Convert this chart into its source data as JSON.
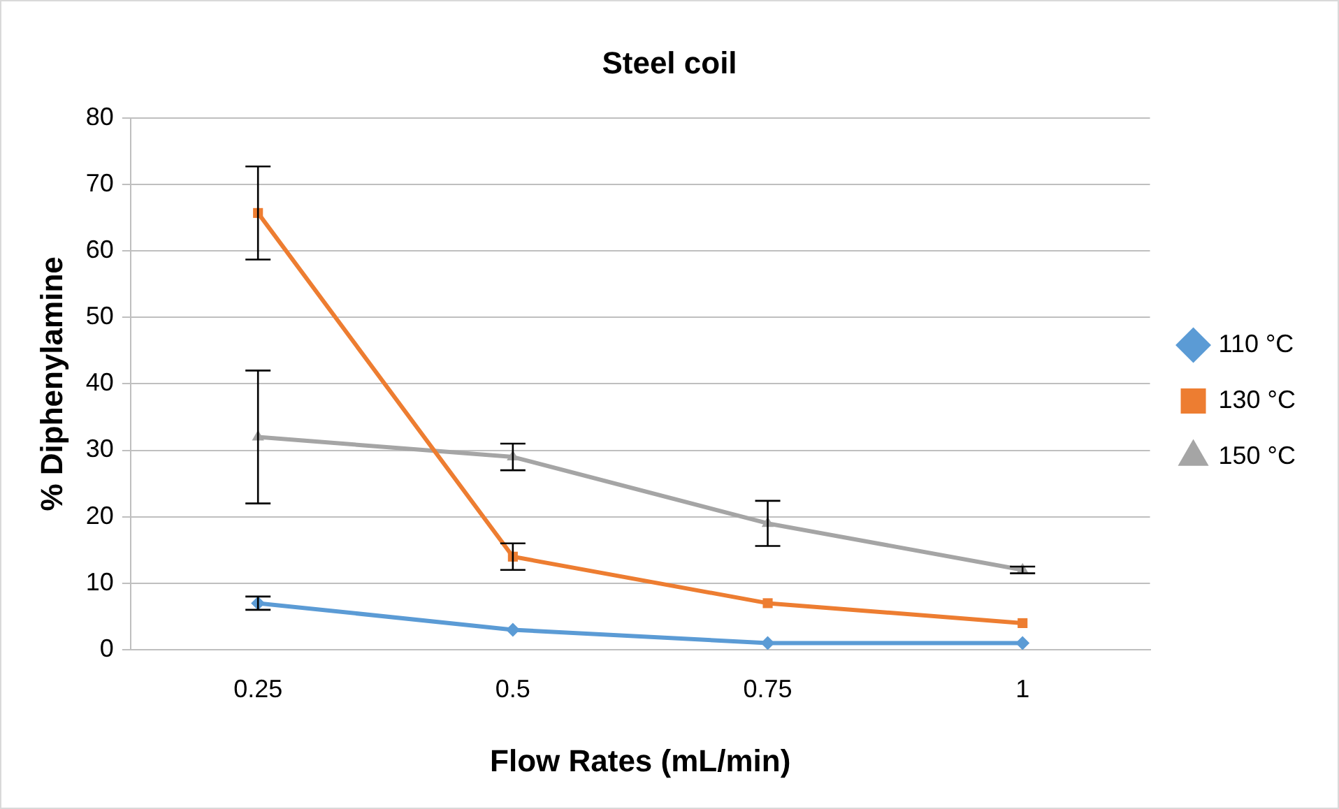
{
  "chart_data": {
    "type": "line",
    "title": "Steel coil",
    "xlabel": "Flow Rates (mL/min)",
    "ylabel": "% Diphenylamine",
    "categories": [
      "0.25",
      "0.5",
      "0.75",
      "1"
    ],
    "series": [
      {
        "name": "110 °C",
        "color": "#5b9bd5",
        "marker": "diamond",
        "values": [
          7,
          3,
          1,
          1
        ],
        "errors": [
          1,
          null,
          null,
          null
        ]
      },
      {
        "name": "130 °C",
        "color": "#ed7d31",
        "marker": "square",
        "values": [
          65.7,
          14,
          7,
          4
        ],
        "errors": [
          7,
          2,
          null,
          null
        ]
      },
      {
        "name": "150 °C",
        "color": "#a5a5a5",
        "marker": "triangle",
        "values": [
          32,
          29,
          19,
          12
        ],
        "errors": [
          10,
          2,
          3.4,
          0.5
        ]
      }
    ],
    "ylim": [
      0,
      80
    ],
    "yticks": [
      0,
      10,
      20,
      30,
      40,
      50,
      60,
      70,
      80
    ],
    "grid": "y",
    "legend": "right"
  }
}
